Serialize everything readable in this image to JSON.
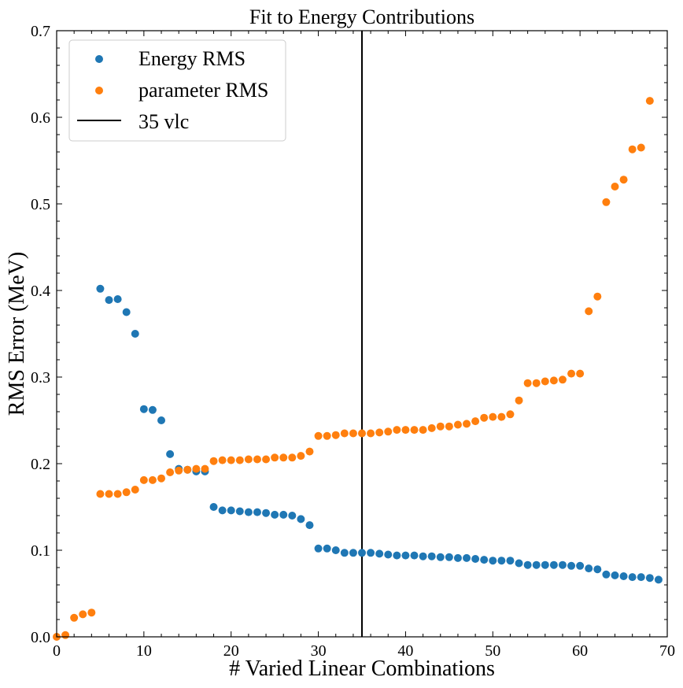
{
  "chart_data": {
    "type": "scatter",
    "title": "Fit to Energy Contributions",
    "xlabel": "# Varied Linear Combinations",
    "ylabel": "RMS Error (MeV)",
    "xlim": [
      0,
      70
    ],
    "ylim": [
      0,
      0.7
    ],
    "xticks": [
      0,
      10,
      20,
      30,
      40,
      50,
      60,
      70
    ],
    "yticks": [
      0.0,
      0.1,
      0.2,
      0.3,
      0.4,
      0.5,
      0.6,
      0.7
    ],
    "xtick_labels": [
      "0",
      "10",
      "20",
      "30",
      "40",
      "50",
      "60",
      "70"
    ],
    "ytick_labels": [
      "0.0",
      "0.1",
      "0.2",
      "0.3",
      "0.4",
      "0.5",
      "0.6",
      "0.7"
    ],
    "grid": false,
    "legend_position": "top-left",
    "series": [
      {
        "name": "Energy RMS",
        "color": "#1f77b4",
        "x": [
          5,
          6,
          7,
          8,
          9,
          10,
          11,
          12,
          13,
          14,
          15,
          16,
          17,
          18,
          19,
          20,
          21,
          22,
          23,
          24,
          25,
          26,
          27,
          28,
          29,
          30,
          31,
          32,
          33,
          34,
          35,
          36,
          37,
          38,
          39,
          40,
          41,
          42,
          43,
          44,
          45,
          46,
          47,
          48,
          49,
          50,
          51,
          52,
          53,
          54,
          55,
          56,
          57,
          58,
          59,
          60,
          61,
          62,
          63,
          64,
          65,
          66,
          67,
          68,
          69
        ],
        "y": [
          0.402,
          0.389,
          0.39,
          0.375,
          0.35,
          0.263,
          0.262,
          0.25,
          0.211,
          0.194,
          0.193,
          0.191,
          0.191,
          0.15,
          0.146,
          0.146,
          0.145,
          0.144,
          0.144,
          0.143,
          0.141,
          0.141,
          0.14,
          0.136,
          0.129,
          0.102,
          0.102,
          0.1,
          0.097,
          0.097,
          0.097,
          0.097,
          0.096,
          0.095,
          0.094,
          0.094,
          0.094,
          0.093,
          0.093,
          0.092,
          0.092,
          0.091,
          0.091,
          0.09,
          0.089,
          0.088,
          0.088,
          0.088,
          0.085,
          0.083,
          0.083,
          0.083,
          0.083,
          0.083,
          0.082,
          0.082,
          0.079,
          0.078,
          0.072,
          0.071,
          0.07,
          0.069,
          0.069,
          0.068,
          0.066
        ]
      },
      {
        "name": "parameter RMS",
        "color": "#ff7f0e",
        "x": [
          0,
          1,
          2,
          3,
          4,
          5,
          6,
          7,
          8,
          9,
          10,
          11,
          12,
          13,
          14,
          15,
          16,
          17,
          18,
          19,
          20,
          21,
          22,
          23,
          24,
          25,
          26,
          27,
          28,
          29,
          30,
          31,
          32,
          33,
          34,
          35,
          36,
          37,
          38,
          39,
          40,
          41,
          42,
          43,
          44,
          45,
          46,
          47,
          48,
          49,
          50,
          51,
          52,
          53,
          54,
          55,
          56,
          57,
          58,
          59,
          60,
          61,
          62,
          63,
          64,
          65,
          66,
          67,
          68
        ],
        "y": [
          0.0,
          0.002,
          0.022,
          0.026,
          0.028,
          0.165,
          0.165,
          0.165,
          0.167,
          0.17,
          0.181,
          0.181,
          0.183,
          0.19,
          0.192,
          0.193,
          0.194,
          0.194,
          0.203,
          0.204,
          0.204,
          0.204,
          0.205,
          0.205,
          0.205,
          0.207,
          0.207,
          0.207,
          0.209,
          0.214,
          0.232,
          0.232,
          0.233,
          0.235,
          0.235,
          0.235,
          0.235,
          0.236,
          0.237,
          0.239,
          0.239,
          0.239,
          0.239,
          0.241,
          0.243,
          0.243,
          0.245,
          0.246,
          0.249,
          0.253,
          0.254,
          0.254,
          0.257,
          0.273,
          0.293,
          0.293,
          0.295,
          0.296,
          0.297,
          0.304,
          0.304,
          0.376,
          0.393,
          0.502,
          0.52,
          0.528,
          0.563,
          0.565,
          0.619
        ]
      }
    ],
    "vline": {
      "name": "35 vlc",
      "x": 35,
      "color": "#000000"
    }
  }
}
